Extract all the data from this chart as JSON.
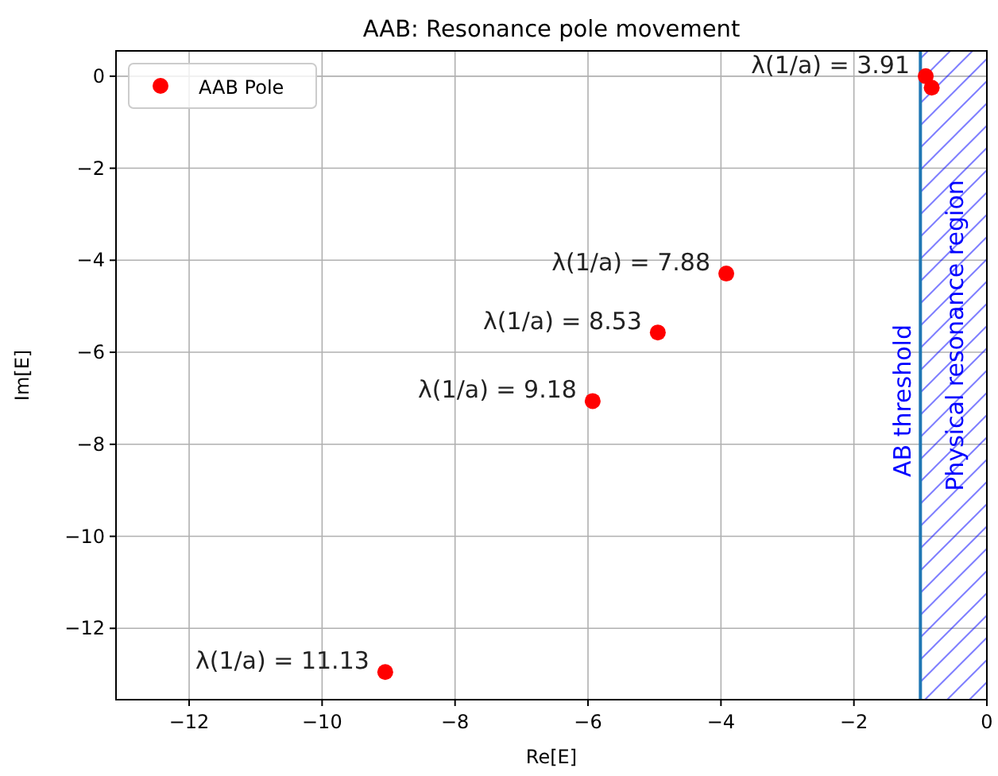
{
  "chart_data": {
    "type": "scatter",
    "title": "AAB: Resonance pole movement",
    "xlabel": "Re[E]",
    "ylabel": "Im[E]",
    "series": [
      {
        "name": "AAB Pole",
        "color": "#ff0000",
        "x": [
          -9.05,
          -5.93,
          -4.95,
          -3.92,
          -0.92,
          -0.83
        ],
        "values": [
          -12.95,
          -7.06,
          -5.57,
          -4.29,
          0,
          -0.25
        ]
      }
    ],
    "xlim": [
      -13.1,
      0
    ],
    "xticks": [
      {
        "value": -12,
        "label": "−12"
      },
      {
        "value": -10,
        "label": "−10"
      },
      {
        "value": -8,
        "label": "−8"
      },
      {
        "value": -6,
        "label": "−6"
      },
      {
        "value": -4,
        "label": "−4"
      },
      {
        "value": -2,
        "label": "−2"
      },
      0
    ],
    "ylim": [
      -13.55,
      0.55
    ],
    "yticks": [
      {
        "value": -12,
        "label": "−12"
      },
      {
        "value": -10,
        "label": "−10"
      },
      {
        "value": -8,
        "label": "−8"
      },
      {
        "value": -6,
        "label": "−6"
      },
      {
        "value": -4,
        "label": "−4"
      },
      {
        "value": -2,
        "label": "−2"
      },
      0
    ],
    "annotations": [
      {
        "text": "λ(1/a) = 11.13",
        "x": -9.05,
        "y": -12.95
      },
      {
        "text": "λ(1/a) = 9.18",
        "x": -5.93,
        "y": -7.06
      },
      {
        "text": "λ(1/a) = 8.53",
        "x": -4.95,
        "y": -5.57
      },
      {
        "text": "λ(1/a) = 7.88",
        "x": -3.92,
        "y": -4.29
      },
      {
        "text": "λ(1/a) = 3.91",
        "x": -0.92,
        "y": 0
      }
    ],
    "ref_lines": [
      {
        "axis": "x",
        "value": -1,
        "label": "AB threshold",
        "color": "#1f77b4"
      }
    ],
    "bands": [
      {
        "axis": "x",
        "from": -1,
        "to": 0,
        "label": "Physical resonance region",
        "color": "#0000ff"
      }
    ],
    "grid": true,
    "legend": "top left",
    "marker": "circle"
  }
}
